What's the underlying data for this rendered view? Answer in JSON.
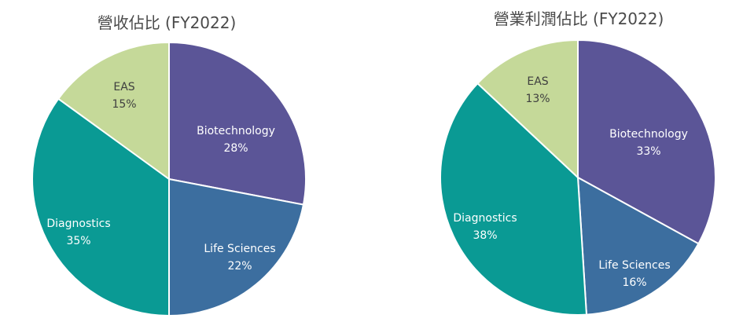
{
  "chart_data": [
    {
      "type": "pie",
      "title": "營收佔比 (FY2022)",
      "slices": [
        {
          "label": "Biotechnology",
          "value": 28,
          "display": "28%",
          "color": "#5B5597",
          "text_color": "#ffffff"
        },
        {
          "label": "Life Sciences",
          "value": 22,
          "display": "22%",
          "color": "#3C6E9F",
          "text_color": "#ffffff"
        },
        {
          "label": "Diagnostics",
          "value": 35,
          "display": "35%",
          "color": "#0A9A94",
          "text_color": "#ffffff"
        },
        {
          "label": "EAS",
          "value": 15,
          "display": "15%",
          "color": "#C5D999",
          "text_color": "#3f3f3f"
        }
      ]
    },
    {
      "type": "pie",
      "title": "營業利潤佔比 (FY2022)",
      "slices": [
        {
          "label": "Biotechnology",
          "value": 33,
          "display": "33%",
          "color": "#5B5597",
          "text_color": "#ffffff"
        },
        {
          "label": "Life Sciences",
          "value": 16,
          "display": "16%",
          "color": "#3C6E9F",
          "text_color": "#ffffff"
        },
        {
          "label": "Diagnostics",
          "value": 38,
          "display": "38%",
          "color": "#0A9A94",
          "text_color": "#ffffff"
        },
        {
          "label": "EAS",
          "value": 13,
          "display": "13%",
          "color": "#C5D999",
          "text_color": "#3f3f3f"
        }
      ]
    }
  ]
}
